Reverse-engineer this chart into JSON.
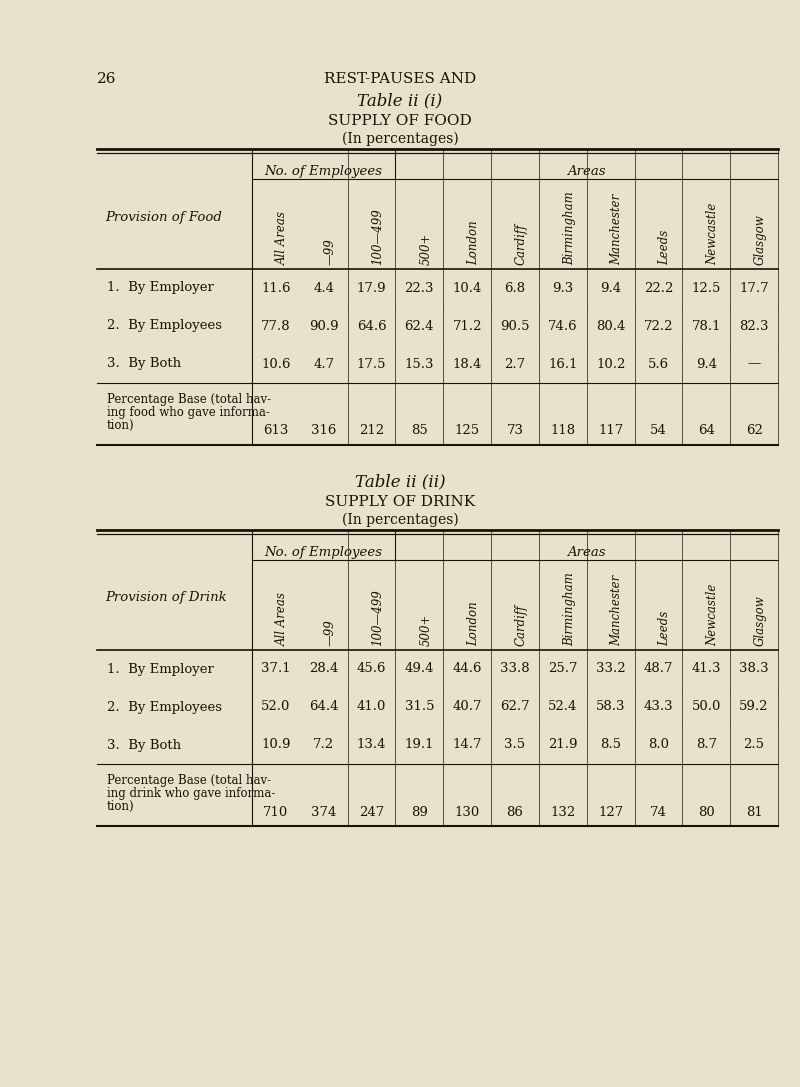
{
  "bg_color": "#e8e2cc",
  "page_number": "26",
  "header_text": "REST-PAUSES AND",
  "table1": {
    "title": "Table ii (i)",
    "subtitle": "SUPPLY OF FOOD",
    "subtitle2": "(In percentages)",
    "col_group1": "No. of Employees",
    "col_group2": "Areas",
    "col_headers": [
      "All Areas",
      "—99",
      "100—499",
      "500+",
      "London",
      "Cardiff",
      "Birmingham",
      "Manchester",
      "Leeds",
      "Newcastle",
      "Glasgow"
    ],
    "row_label_col": "Provision of Food",
    "rows": [
      {
        "label": "1.  By Employer",
        "values": [
          "11.6",
          "4.4",
          "17.9",
          "22.3",
          "10.4",
          "6.8",
          "9.3",
          "9.4",
          "22.2",
          "12.5",
          "17.7"
        ]
      },
      {
        "label": "2.  By Employees",
        "values": [
          "77.8",
          "90.9",
          "64.6",
          "62.4",
          "71.2",
          "90.5",
          "74.6",
          "80.4",
          "72.2",
          "78.1",
          "82.3"
        ]
      },
      {
        "label": "3.  By Both",
        "values": [
          "10.6",
          "4.7",
          "17.5",
          "15.3",
          "18.4",
          "2.7",
          "16.1",
          "10.2",
          "5.6",
          "9.4",
          "—"
        ]
      }
    ],
    "percentage_base_label": "Percentage Base (total hav-\ning food who gave informa-\ntion)",
    "percentage_base_values": [
      "613",
      "316",
      "212",
      "85",
      "125",
      "73",
      "118",
      "117",
      "54",
      "64",
      "62"
    ]
  },
  "table2": {
    "title": "Table ii (ii)",
    "subtitle": "SUPPLY OF DRINK",
    "subtitle2": "(In percentages)",
    "col_group1": "No. of Employees",
    "col_group2": "Areas",
    "col_headers": [
      "All Areas",
      "—99",
      "100—499",
      "500+",
      "London",
      "Cardiff",
      "Birmingham",
      "Manchester",
      "Leeds",
      "Newcastle",
      "Glasgow"
    ],
    "row_label_col": "Provision of Drink",
    "rows": [
      {
        "label": "1.  By Employer",
        "values": [
          "37.1",
          "28.4",
          "45.6",
          "49.4",
          "44.6",
          "33.8",
          "25.7",
          "33.2",
          "48.7",
          "41.3",
          "38.3"
        ]
      },
      {
        "label": "2.  By Employees",
        "values": [
          "52.0",
          "64.4",
          "41.0",
          "31.5",
          "40.7",
          "62.7",
          "52.4",
          "58.3",
          "43.3",
          "50.0",
          "59.2"
        ]
      },
      {
        "label": "3.  By Both",
        "values": [
          "10.9",
          "7.2",
          "13.4",
          "19.1",
          "14.7",
          "3.5",
          "21.9",
          "8.5",
          "8.0",
          "8.7",
          "2.5"
        ]
      }
    ],
    "percentage_base_label": "Percentage Base (total hav-\ning drink who gave informa-\ntion)",
    "percentage_base_values": [
      "710",
      "374",
      "247",
      "89",
      "130",
      "86",
      "132",
      "127",
      "74",
      "80",
      "81"
    ]
  }
}
